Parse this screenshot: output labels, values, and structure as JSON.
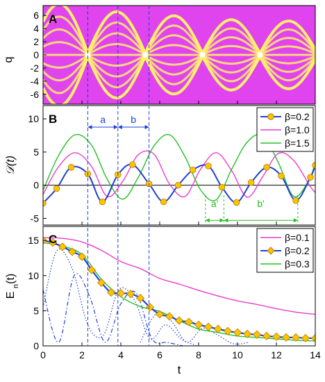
{
  "figure": {
    "x_axis": {
      "label": "t",
      "range": [
        0,
        14
      ],
      "ticks": [
        "0",
        "2",
        "4",
        "6",
        "8",
        "10",
        "12",
        "14"
      ]
    },
    "vlines_t": [
      2.3,
      3.85,
      5.45
    ]
  },
  "chart_data": [
    {
      "type": "heatmap",
      "panel_label": "A",
      "ylabel": "q",
      "ylim": [
        -7.5,
        7.5
      ],
      "yticks": [
        "6",
        "4",
        "2",
        "0",
        "-2",
        "-4",
        "-6"
      ],
      "background_color": "#e044ee",
      "band_color": "#fff26a",
      "mode_count": 9,
      "breathing_period": 2.95,
      "node_times": [
        2.3,
        5.25,
        8.2,
        11.15
      ],
      "envelope_max": [
        7.5,
        6.3,
        5.7,
        5.1,
        4.9
      ]
    },
    {
      "type": "line",
      "panel_label": "B",
      "ylabel": "𝒟(t)",
      "ylim": [
        -6,
        12
      ],
      "yticks": [
        "10",
        "5",
        "0",
        "-5"
      ],
      "annotations": {
        "a": "a",
        "b": "b",
        "a_prime": "a'",
        "b_prime": "b'"
      },
      "series": [
        {
          "name": "β=0.2",
          "color": "#1f3fd8",
          "marker": "circle",
          "marker_color": "#ffc400",
          "x": [
            0,
            0.7,
            1.45,
            2.3,
            3.05,
            3.85,
            4.6,
            5.45,
            6.2,
            6.95,
            7.7,
            8.5,
            9.2,
            9.95,
            10.7,
            11.5,
            12.25,
            13.0,
            13.75,
            14.0
          ],
          "y": [
            -2.7,
            -0.5,
            2.7,
            1.7,
            -2.5,
            1.6,
            3.1,
            0.2,
            -2.5,
            0.0,
            2.3,
            2.9,
            -0.3,
            -2.6,
            0.4,
            2.7,
            1.4,
            -2.3,
            1.2,
            3.0
          ]
        },
        {
          "name": "β=1.0",
          "color": "#e93ccd",
          "x": [
            0,
            0.8,
            1.65,
            2.5,
            3.3,
            4.1,
            4.9,
            5.7,
            6.5,
            7.3,
            8.1,
            8.9,
            9.7,
            10.5,
            11.3,
            12.1,
            12.9,
            13.7,
            14.0
          ],
          "y": [
            -1.4,
            2.8,
            4.9,
            2.8,
            -1.7,
            0.6,
            4.6,
            4.7,
            0.2,
            -1.7,
            2.4,
            4.9,
            2.2,
            -1.8,
            1.3,
            4.8,
            3.7,
            0.0,
            -1.1
          ]
        },
        {
          "name": "β=1.5",
          "color": "#21c021",
          "x": [
            0,
            0.8,
            1.65,
            2.5,
            3.3,
            4.1,
            4.9,
            5.7,
            6.5,
            7.3,
            8.1,
            8.9,
            9.7,
            10.5,
            11.3,
            12.1,
            12.9,
            13.7,
            14.0
          ],
          "y": [
            -0.8,
            4.5,
            7.6,
            6.0,
            0.9,
            -2.1,
            1.2,
            5.9,
            7.6,
            4.3,
            -0.7,
            -2.2,
            2.4,
            6.5,
            7.5,
            3.4,
            -1.7,
            0.9,
            3.6
          ]
        }
      ]
    },
    {
      "type": "line",
      "panel_label": "C",
      "ylabel": "E_n(t)",
      "ylim": [
        0,
        17
      ],
      "yticks": [
        "15",
        "10",
        "5",
        "0"
      ],
      "series": [
        {
          "name": "β=0.1",
          "color": "#e93ccd",
          "x": [
            0,
            1,
            2,
            3,
            4,
            5,
            6,
            7,
            8,
            9,
            10,
            11,
            12,
            13,
            14
          ],
          "y": [
            15.4,
            15.3,
            14.8,
            13.6,
            12.0,
            11.0,
            9.6,
            8.8,
            7.9,
            7.1,
            6.4,
            5.9,
            5.3,
            4.8,
            4.5
          ]
        },
        {
          "name": "β=0.2",
          "color": "#1f3fd8",
          "marker": "diamond",
          "marker_color": "#ffc400",
          "x": [
            0,
            0.5,
            1.0,
            1.5,
            2.0,
            2.5,
            3.0,
            3.5,
            4.0,
            4.5,
            5.0,
            5.5,
            6.0,
            6.5,
            7.0,
            7.5,
            8.0,
            8.5,
            9.0,
            9.5,
            10.0,
            10.5,
            11.0,
            11.5,
            12.0,
            12.5,
            13.0,
            13.5,
            14.0
          ],
          "y": [
            15.0,
            14.7,
            14.1,
            13.4,
            12.7,
            10.8,
            9.0,
            7.6,
            7.5,
            7.4,
            6.8,
            5.5,
            4.5,
            4.2,
            3.6,
            3.4,
            3.0,
            2.7,
            2.4,
            2.1,
            1.9,
            1.7,
            1.6,
            1.4,
            1.3,
            1.2,
            1.2,
            1.1,
            1.1
          ]
        },
        {
          "name": "β=0.3",
          "color": "#21c021",
          "x": [
            0,
            1,
            2,
            3,
            4,
            5,
            6,
            7,
            8,
            9,
            10,
            11,
            12,
            13,
            14
          ],
          "y": [
            14.7,
            14.2,
            13.0,
            9.5,
            7.0,
            5.6,
            4.9,
            3.6,
            2.4,
            1.9,
            1.4,
            1.2,
            1.0,
            0.8,
            0.7
          ]
        }
      ],
      "components": {
        "dashdot": {
          "color": "#1f3fd8",
          "x": [
            0,
            0.8,
            1.6,
            2.4,
            3.2,
            4.0,
            4.8,
            5.6,
            6.4,
            7.2
          ],
          "y": [
            8.0,
            0.5,
            10.0,
            7.0,
            0.5,
            6.0,
            7.5,
            1.0,
            0.5,
            0.0
          ]
        },
        "dotted_1": {
          "color": "#1f3fd8",
          "x": [
            0,
            0.7,
            1.5,
            2.3,
            3.1,
            3.9,
            4.7,
            5.5,
            6.3,
            7.1,
            7.9
          ],
          "y": [
            5.5,
            13.5,
            11.0,
            3.0,
            1.5,
            8.0,
            6.5,
            1.0,
            3.0,
            1.0,
            0.0
          ]
        },
        "dotted_2": {
          "color": "#1f3fd8",
          "x": [
            5.0,
            5.8,
            6.6,
            7.4,
            8.2,
            9.0,
            9.8,
            10.6
          ],
          "y": [
            0.5,
            4.5,
            3.5,
            0.5,
            2.5,
            1.5,
            0.3,
            0.5
          ]
        }
      }
    }
  ]
}
